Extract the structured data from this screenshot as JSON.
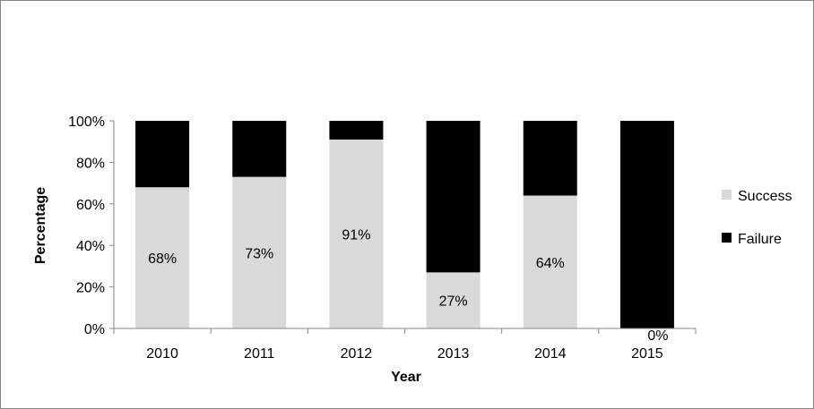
{
  "chart_data": {
    "type": "bar",
    "stacked": true,
    "percent_stacked": true,
    "categories": [
      "2010",
      "2011",
      "2012",
      "2013",
      "2014",
      "2015"
    ],
    "series": [
      {
        "name": "Success",
        "color": "#d9d9d9",
        "values": [
          68,
          73,
          91,
          27,
          64,
          0
        ]
      },
      {
        "name": "Failure",
        "color": "#000000",
        "values": [
          32,
          27,
          9,
          73,
          36,
          100
        ]
      }
    ],
    "data_labels": [
      "68%",
      "73%",
      "91%",
      "27%",
      "64%",
      "0%"
    ],
    "xlabel": "Year",
    "ylabel": "Percentage",
    "ylim": [
      0,
      100
    ],
    "yticks": [
      "0%",
      "20%",
      "40%",
      "60%",
      "80%",
      "100%"
    ],
    "grid": false,
    "legend_position": "right"
  }
}
